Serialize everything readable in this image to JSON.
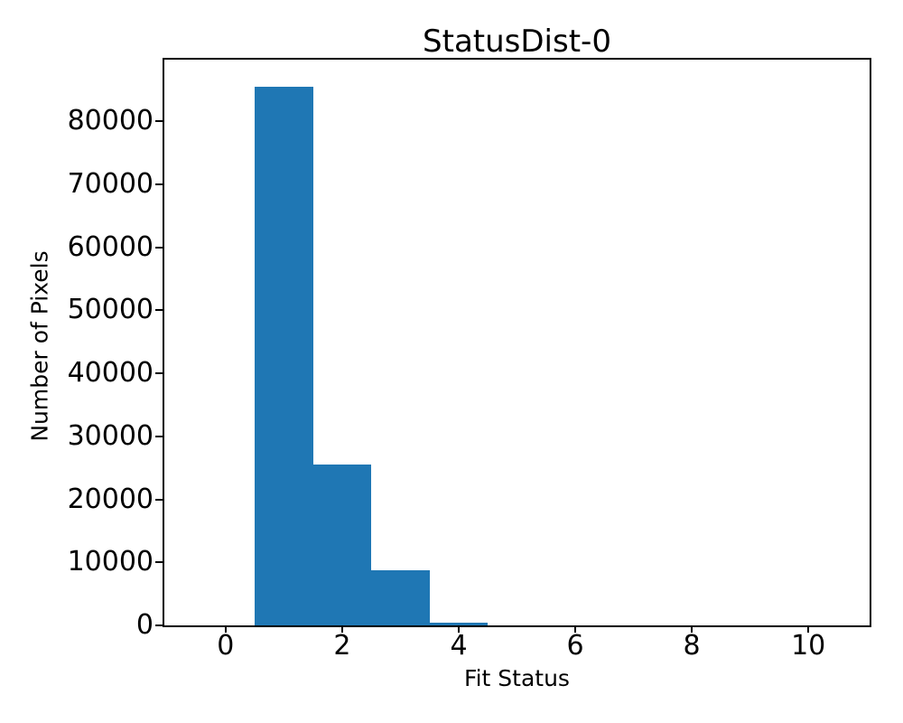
{
  "chart_data": {
    "type": "histogram",
    "title": "StatusDist-0",
    "xlabel": "Fit Status",
    "ylabel": "Number of Pixels",
    "bar_color": "#1f77b4",
    "axis_color": "#000000",
    "text_color": "#000000",
    "bin_edges": [
      -0.5,
      0.5,
      1.5,
      2.5,
      3.5,
      4.5,
      5.5,
      6.5,
      7.5,
      8.5,
      9.5,
      10.5
    ],
    "counts": [
      0,
      85500,
      25600,
      8700,
      450,
      0,
      0,
      0,
      0,
      0,
      0
    ],
    "x_ticks": [
      0,
      2,
      4,
      6,
      8,
      10
    ],
    "y_ticks": [
      0,
      10000,
      20000,
      30000,
      40000,
      50000,
      60000,
      70000,
      80000
    ],
    "xlim": [
      -1.05,
      11.05
    ],
    "ylim": [
      0,
      89775
    ],
    "grid": false,
    "legend": null
  }
}
